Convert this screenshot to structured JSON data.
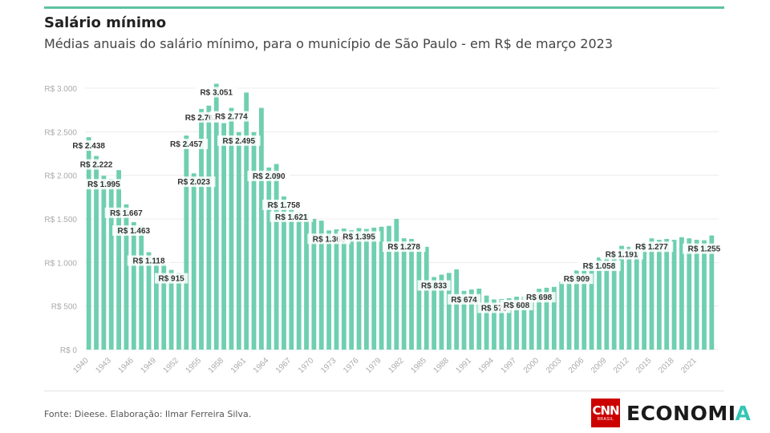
{
  "header": {
    "title": "Salário mínimo",
    "subtitle": "Médias anuais do salário mínimo, para o município de São Paulo - em R$ de março 2023"
  },
  "footer": {
    "source": "Fonte: Dieese. Elaboração: Ilmar Ferreira Silva.",
    "logo_cnn": "CNN",
    "logo_cnn_sub": "BRASIL",
    "logo_text": "ECONOMI",
    "logo_accent": "A"
  },
  "colors": {
    "bar": "#6fcfb0",
    "rule": "#5ec2a0",
    "grid": "#ececec",
    "tick": "#aaaaaa",
    "label": "#333333"
  },
  "chart_data": {
    "type": "bar",
    "title": "Salário mínimo",
    "subtitle": "Médias anuais do salário mínimo, para o município de São Paulo - em R$ de março 2023",
    "xlabel": "",
    "ylabel": "",
    "ylim": [
      0,
      3000
    ],
    "yticks": [
      0,
      500,
      1000,
      1500,
      2000,
      2500,
      3000
    ],
    "ytick_labels": [
      "R$ 0",
      "R$ 500",
      "R$ 1.000",
      "R$ 1.500",
      "R$ 2.000",
      "R$ 2.500",
      "R$ 3.000"
    ],
    "xtick_labels": [
      "1940",
      "1943",
      "1946",
      "1949",
      "1952",
      "1955",
      "1958",
      "1961",
      "1964",
      "1967",
      "1970",
      "1973",
      "1976",
      "1979",
      "1982",
      "1985",
      "1988",
      "1991",
      "1994",
      "1997",
      "2000",
      "2003",
      "2006",
      "2009",
      "2012",
      "2015",
      "2018",
      "2021"
    ],
    "grid": true,
    "categories": [
      "1940",
      "1941",
      "1942",
      "1943",
      "1944",
      "1945",
      "1946",
      "1947",
      "1948",
      "1949",
      "1950",
      "1951",
      "1952",
      "1953",
      "1954",
      "1955",
      "1956",
      "1957",
      "1958",
      "1959",
      "1960",
      "1961",
      "1962",
      "1963",
      "1964",
      "1965",
      "1966",
      "1967",
      "1968",
      "1969",
      "1970",
      "1971",
      "1972",
      "1973",
      "1974",
      "1975",
      "1976",
      "1977",
      "1978",
      "1979",
      "1980",
      "1981",
      "1982",
      "1983",
      "1984",
      "1985",
      "1986",
      "1987",
      "1988",
      "1989",
      "1990",
      "1991",
      "1992",
      "1993",
      "1994",
      "1995",
      "1996",
      "1997",
      "1998",
      "1999",
      "2000",
      "2001",
      "2002",
      "2003",
      "2004",
      "2005",
      "2006",
      "2007",
      "2008",
      "2009",
      "2010",
      "2011",
      "2012",
      "2013",
      "2014",
      "2015",
      "2016",
      "2017",
      "2018",
      "2019",
      "2020",
      "2021",
      "2022",
      "2023"
    ],
    "values": [
      2438,
      2222,
      1995,
      1960,
      2060,
      1667,
      1463,
      1420,
      1118,
      1060,
      1000,
      915,
      880,
      2457,
      2023,
      2762,
      2800,
      3051,
      2600,
      2774,
      2495,
      2950,
      2495,
      2774,
      2090,
      2130,
      1758,
      1621,
      1580,
      1560,
      1500,
      1480,
      1368,
      1380,
      1390,
      1370,
      1395,
      1385,
      1400,
      1410,
      1420,
      1500,
      1278,
      1270,
      1200,
      1180,
      833,
      860,
      880,
      920,
      674,
      690,
      700,
      620,
      576,
      580,
      590,
      608,
      610,
      620,
      698,
      710,
      720,
      780,
      820,
      909,
      940,
      1000,
      1058,
      1070,
      1100,
      1191,
      1180,
      1200,
      1230,
      1277,
      1260,
      1270,
      1260,
      1290,
      1277,
      1260,
      1255,
      1310
    ],
    "data_labels": [
      {
        "x": "1940",
        "label": "R$ 2.438"
      },
      {
        "x": "1941",
        "label": "R$ 2.222"
      },
      {
        "x": "1942",
        "label": "R$ 1.995"
      },
      {
        "x": "1945",
        "label": "R$ 1.667"
      },
      {
        "x": "1946",
        "label": "R$ 1.463"
      },
      {
        "x": "1948",
        "label": "R$ 1.118"
      },
      {
        "x": "1951",
        "label": "R$ 915"
      },
      {
        "x": "1953",
        "label": "R$ 2.457"
      },
      {
        "x": "1954",
        "label": "R$ 2.023"
      },
      {
        "x": "1955",
        "label": "R$ 2.762"
      },
      {
        "x": "1957",
        "label": "R$ 3.051"
      },
      {
        "x": "1959",
        "label": "R$ 2.774"
      },
      {
        "x": "1960",
        "label": "R$ 2.495"
      },
      {
        "x": "1964",
        "label": "R$ 2.090"
      },
      {
        "x": "1966",
        "label": "R$ 1.758"
      },
      {
        "x": "1967",
        "label": "R$ 1.621"
      },
      {
        "x": "1972",
        "label": "R$ 1.368"
      },
      {
        "x": "1976",
        "label": "R$ 1.395"
      },
      {
        "x": "1982",
        "label": "R$ 1.278"
      },
      {
        "x": "1986",
        "label": "R$ 833"
      },
      {
        "x": "1990",
        "label": "R$ 674"
      },
      {
        "x": "1994",
        "label": "R$ 576"
      },
      {
        "x": "1997",
        "label": "R$ 608"
      },
      {
        "x": "2000",
        "label": "R$ 698"
      },
      {
        "x": "2005",
        "label": "R$ 909"
      },
      {
        "x": "2008",
        "label": "R$ 1.058"
      },
      {
        "x": "2011",
        "label": "R$ 1.191"
      },
      {
        "x": "2015",
        "label": "R$ 1.277"
      },
      {
        "x": "2022",
        "label": "R$ 1.255"
      }
    ]
  }
}
